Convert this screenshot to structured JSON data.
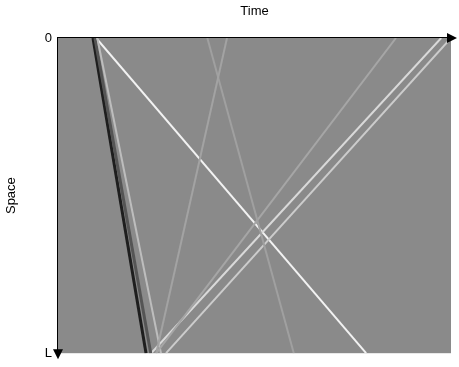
{
  "chart_data": {
    "type": "line",
    "x_label": "Time",
    "y_label": "Space",
    "xlim": [
      0,
      1
    ],
    "ylim": [
      0,
      1
    ],
    "yticks": [
      {
        "value": 0,
        "label": "0"
      },
      {
        "value": 1,
        "label": "L"
      }
    ],
    "tick_labels": "y",
    "grid": false,
    "series": [
      {
        "color": "#a3a3a3",
        "x": [
          0.43,
          0.25
        ],
        "values": [
          0,
          1
        ]
      },
      {
        "color": "#a0a0a0",
        "x": [
          0.38,
          0.6
        ],
        "values": [
          0,
          1
        ]
      },
      {
        "color": "#a6a6a6",
        "x": [
          0.25,
          0.86
        ],
        "values": [
          1,
          0
        ]
      },
      {
        "color": "#bdbdbd",
        "x": [
          0.1,
          0.262
        ],
        "values": [
          0,
          1
        ]
      },
      {
        "color": "#555555",
        "x": [
          0.094,
          0.236
        ],
        "values": [
          0,
          1
        ]
      },
      {
        "color": "#1e1e1e",
        "x": [
          0.089,
          0.224
        ],
        "values": [
          0,
          1
        ]
      },
      {
        "color": "#d9d9d9",
        "x": [
          0.237,
          0.975
        ],
        "values": [
          1,
          0
        ]
      },
      {
        "color": "#cccccc",
        "x": [
          0.275,
          1.0
        ],
        "values": [
          1,
          0
        ]
      },
      {
        "color": "#f2f2f2",
        "x": [
          0.097,
          0.784
        ],
        "values": [
          0,
          1
        ]
      }
    ]
  }
}
